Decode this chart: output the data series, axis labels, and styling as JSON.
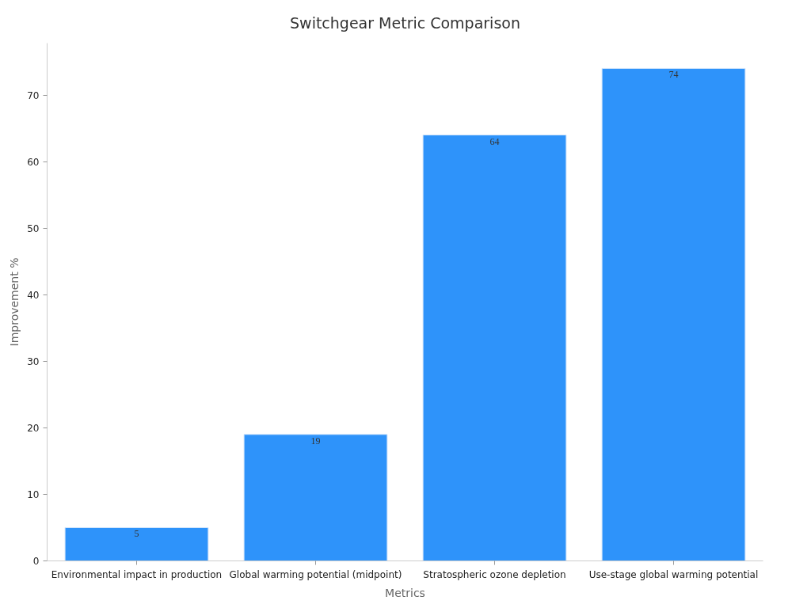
{
  "chart_data": {
    "type": "bar",
    "title": "Switchgear Metric Comparison",
    "xlabel": "Metrics",
    "ylabel": "Improvement %",
    "categories": [
      "Environmental impact in production",
      "Global warming potential (midpoint)",
      "Stratospheric ozone depletion",
      "Use-stage global warming potential"
    ],
    "values": [
      5,
      19,
      64,
      74
    ],
    "color": "#2e93fa",
    "ylim": [
      0,
      77.8
    ],
    "yticks": [
      0,
      10,
      20,
      30,
      40,
      50,
      60,
      70
    ],
    "grid": false,
    "data_labels": true
  }
}
